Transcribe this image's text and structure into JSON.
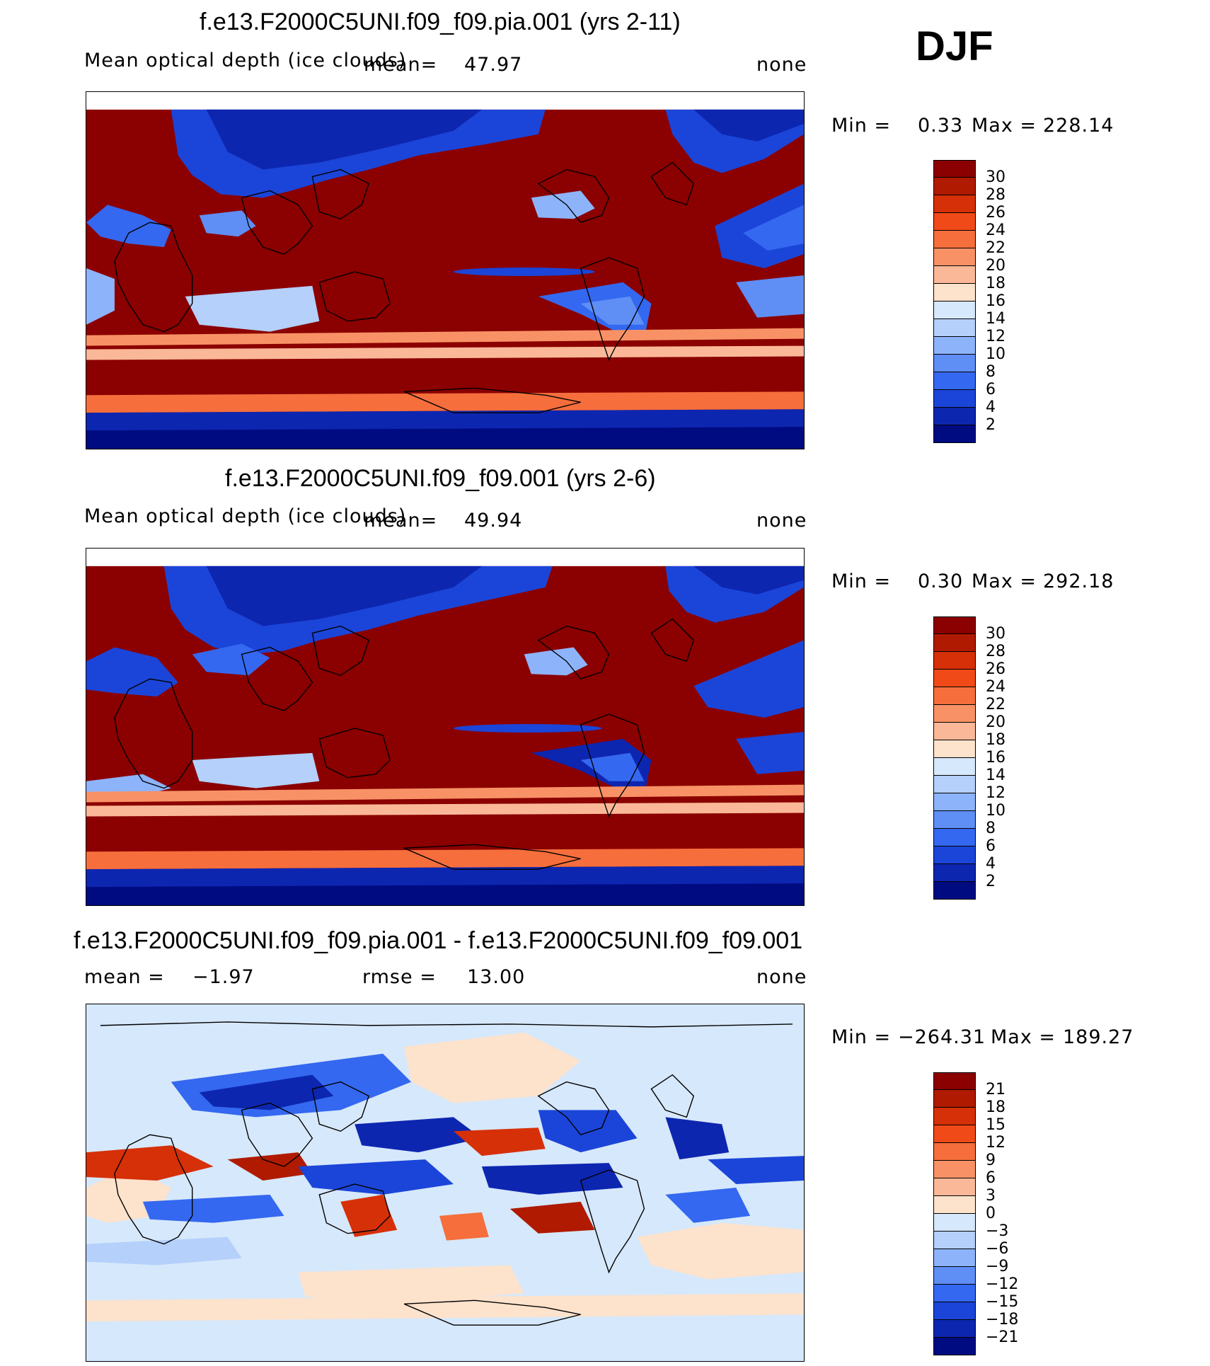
{
  "season": "DJF",
  "panels": [
    {
      "title": "f.e13.F2000C5UNI.f09_f09.pia.001 (yrs 2-11)",
      "variable": "Mean optical depth (ice clouds)",
      "mean_label": "mean=",
      "mean_value": "47.97",
      "units": "none",
      "min_label": "Min =",
      "min_value": "0.33",
      "max_label": "Max =",
      "max_value": "228.14",
      "colorbar": {
        "ticks": [
          "30",
          "28",
          "26",
          "24",
          "22",
          "20",
          "18",
          "16",
          "14",
          "12",
          "10",
          "8",
          "6",
          "4",
          "2"
        ],
        "colors": [
          "#8b0000",
          "#b01a00",
          "#d63008",
          "#ef4a18",
          "#f56e3c",
          "#f89266",
          "#fbb898",
          "#fde2cc",
          "#d6e8fb",
          "#b4d0fb",
          "#8db4fb",
          "#5f8ef5",
          "#3468f0",
          "#1b45d8",
          "#0d26b0",
          "#000b82"
        ]
      }
    },
    {
      "title": "f.e13.F2000C5UNI.f09_f09.001 (yrs 2-6)",
      "variable": "Mean optical depth (ice clouds)",
      "mean_label": "mean=",
      "mean_value": "49.94",
      "units": "none",
      "min_label": "Min =",
      "min_value": "0.30",
      "max_label": "Max =",
      "max_value": "292.18",
      "colorbar": {
        "ticks": [
          "30",
          "28",
          "26",
          "24",
          "22",
          "20",
          "18",
          "16",
          "14",
          "12",
          "10",
          "8",
          "6",
          "4",
          "2"
        ],
        "colors": [
          "#8b0000",
          "#b01a00",
          "#d63008",
          "#ef4a18",
          "#f56e3c",
          "#f89266",
          "#fbb898",
          "#fde2cc",
          "#d6e8fb",
          "#b4d0fb",
          "#8db4fb",
          "#5f8ef5",
          "#3468f0",
          "#1b45d8",
          "#0d26b0",
          "#000b82"
        ]
      }
    },
    {
      "title": "f.e13.F2000C5UNI.f09_f09.pia.001 - f.e13.F2000C5UNI.f09_f09.001",
      "mean_label": "mean =",
      "mean_value": "−1.97",
      "rmse_label": "rmse =",
      "rmse_value": "13.00",
      "units": "none",
      "min_label": "Min =",
      "min_value": "−264.31",
      "max_label": "Max =",
      "max_value": "189.27",
      "colorbar": {
        "ticks": [
          "21",
          "18",
          "15",
          "12",
          "9",
          "6",
          "3",
          "0",
          "−3",
          "−6",
          "−9",
          "−12",
          "−15",
          "−18",
          "−21"
        ],
        "colors": [
          "#8b0000",
          "#b01a00",
          "#d63008",
          "#ef4a18",
          "#f56e3c",
          "#f89266",
          "#fbb898",
          "#fde2cc",
          "#d6e8fb",
          "#b4d0fb",
          "#8db4fb",
          "#5f8ef5",
          "#3468f0",
          "#1b45d8",
          "#0d26b0",
          "#000b82"
        ]
      }
    }
  ]
}
